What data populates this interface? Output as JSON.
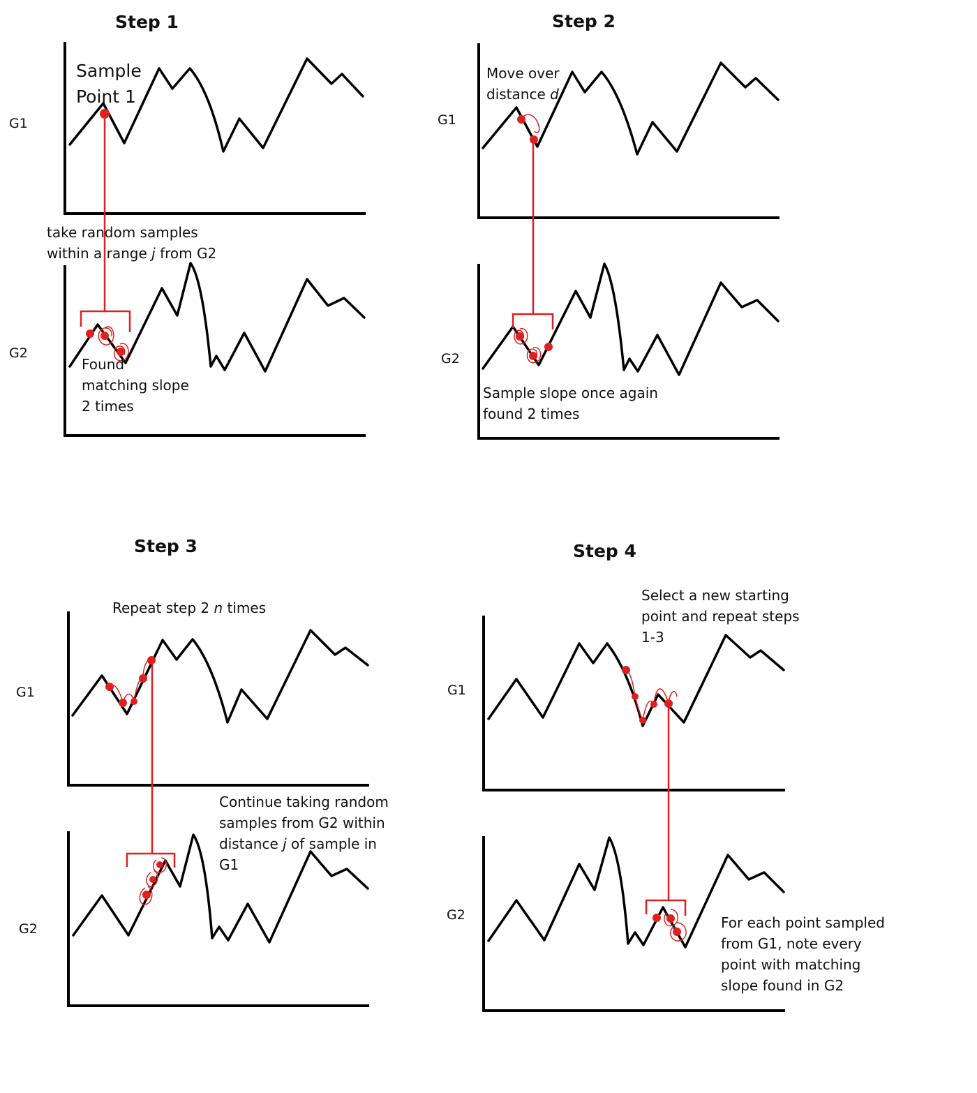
{
  "colors": {
    "ink": "#000000",
    "accent": "#e02020",
    "background": "#ffffff"
  },
  "panels": [
    {
      "title": "Step 1",
      "g1_label": "G1",
      "g2_label": "G2",
      "notes": {
        "sample_line1": "Sample",
        "sample_line2": "Point 1",
        "range_line1": "take random samples",
        "range_line2_pre": "within a range ",
        "range_var": "j",
        "range_line2_post": " from G2",
        "found_line1": "Found",
        "found_line2": "matching slope",
        "found_line3": "2 times"
      }
    },
    {
      "title": "Step 2",
      "g1_label": "G1",
      "g2_label": "G2",
      "notes": {
        "move_line1": "Move over",
        "move_line2_pre": "distance ",
        "move_var": "d",
        "sample_line1": "Sample slope once again",
        "sample_line2": "found 2 times"
      }
    },
    {
      "title": "Step 3",
      "g1_label": "G1",
      "g2_label": "G2",
      "notes": {
        "repeat_pre": "Repeat step 2 ",
        "repeat_var": "n",
        "repeat_post": " times",
        "cont_line1": "Continue taking random",
        "cont_line2": "samples from G2 within",
        "cont_line3_pre": "distance ",
        "cont_var": "j",
        "cont_line3_post": " of sample in",
        "cont_line4": "G1"
      }
    },
    {
      "title": "Step 4",
      "g1_label": "G1",
      "g2_label": "G2",
      "notes": {
        "select_line1": "Select a new starting",
        "select_line2": "point and repeat steps",
        "select_line3": "1-3",
        "each_line1": "For each point sampled",
        "each_line2": "from G1, note every",
        "each_line3": "point with matching",
        "each_line4": "slope found in G2"
      }
    }
  ]
}
